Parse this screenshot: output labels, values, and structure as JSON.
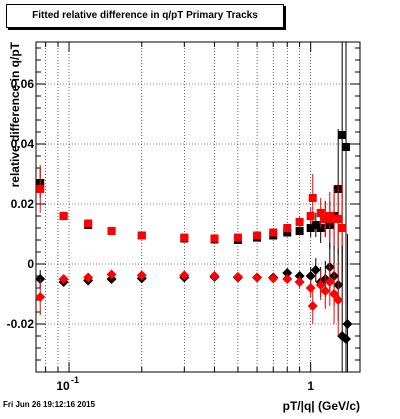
{
  "footer_timestamp": "Fri Jun 26 19:12:16 2015",
  "chart_data": {
    "type": "scatter",
    "title": "Fitted relative difference in q/pT  Primary Tracks",
    "xlabel": "pT/|q| (GeV/c)",
    "ylabel": "relative difference in q/pT",
    "xscale": "log",
    "xlim": [
      0.073,
      1.6
    ],
    "ylim": [
      -0.036,
      0.074
    ],
    "x_tick_labels": [
      {
        "value": 0.1,
        "label": "10",
        "exponent": "-1"
      },
      {
        "value": 1,
        "label": "1",
        "exponent": ""
      }
    ],
    "y_ticks": [
      {
        "value": -0.02,
        "label": "-0.02"
      },
      {
        "value": 0,
        "label": "0"
      },
      {
        "value": 0.02,
        "label": "0.02"
      },
      {
        "value": 0.04,
        "label": "0.04"
      },
      {
        "value": 0.06,
        "label": "0.06"
      }
    ],
    "grid": true,
    "colors": {
      "series_upper_black": "#000000",
      "series_upper_red": "#ff0000",
      "series_lower_black": "#000000",
      "series_lower_red": "#ff0000"
    },
    "series": [
      {
        "marker": "square",
        "color": "#000000",
        "points": [
          [
            0.076,
            0.027,
            0.005
          ],
          [
            0.095,
            0.016,
            0.001
          ],
          [
            0.12,
            0.013,
            0.0006
          ],
          [
            0.15,
            0.011,
            0.0005
          ],
          [
            0.2,
            0.0095,
            0.0004
          ],
          [
            0.3,
            0.0085,
            0.0004
          ],
          [
            0.4,
            0.0082,
            0.0004
          ],
          [
            0.5,
            0.008,
            0.0005
          ],
          [
            0.6,
            0.0088,
            0.0006
          ],
          [
            0.7,
            0.0095,
            0.0008
          ],
          [
            0.8,
            0.0105,
            0.001
          ],
          [
            0.9,
            0.011,
            0.0015
          ],
          [
            1.0,
            0.012,
            0.003
          ],
          [
            1.05,
            0.013,
            0.004
          ],
          [
            1.1,
            0.012,
            0.005
          ],
          [
            1.15,
            0.015,
            0.006
          ],
          [
            1.2,
            0.013,
            0.008
          ],
          [
            1.25,
            0.016,
            0.01
          ],
          [
            1.3,
            0.025,
            0.02
          ],
          [
            1.35,
            0.043,
            0.05
          ],
          [
            1.4,
            0.039,
            0.05
          ]
        ]
      },
      {
        "marker": "square",
        "color": "#ff0000",
        "points": [
          [
            0.076,
            0.025,
            0.008
          ],
          [
            0.095,
            0.016,
            0.0015
          ],
          [
            0.12,
            0.0135,
            0.0008
          ],
          [
            0.15,
            0.011,
            0.0006
          ],
          [
            0.2,
            0.0095,
            0.0005
          ],
          [
            0.3,
            0.0088,
            0.0005
          ],
          [
            0.4,
            0.0085,
            0.0005
          ],
          [
            0.5,
            0.0088,
            0.0006
          ],
          [
            0.6,
            0.0095,
            0.0007
          ],
          [
            0.7,
            0.0105,
            0.0009
          ],
          [
            0.8,
            0.012,
            0.0012
          ],
          [
            0.9,
            0.014,
            0.002
          ],
          [
            1.0,
            0.016,
            0.003
          ],
          [
            1.02,
            0.022,
            0.008
          ],
          [
            1.1,
            0.017,
            0.005
          ],
          [
            1.15,
            0.015,
            0.006
          ],
          [
            1.2,
            0.016,
            0.008
          ],
          [
            1.25,
            0.015,
            0.01
          ],
          [
            1.3,
            0.015,
            0.012
          ],
          [
            1.35,
            0.012,
            0.015
          ]
        ]
      },
      {
        "marker": "diamond",
        "color": "#000000",
        "points": [
          [
            0.076,
            -0.005,
            0.003
          ],
          [
            0.095,
            -0.006,
            0.0008
          ],
          [
            0.12,
            -0.0055,
            0.0005
          ],
          [
            0.15,
            -0.005,
            0.0004
          ],
          [
            0.2,
            -0.0048,
            0.0004
          ],
          [
            0.3,
            -0.0045,
            0.0004
          ],
          [
            0.4,
            -0.0043,
            0.0005
          ],
          [
            0.5,
            -0.0045,
            0.0006
          ],
          [
            0.6,
            -0.0045,
            0.0007
          ],
          [
            0.7,
            -0.0045,
            0.0009
          ],
          [
            0.8,
            -0.003,
            0.0012
          ],
          [
            0.9,
            -0.004,
            0.0015
          ],
          [
            1.0,
            -0.004,
            0.003
          ],
          [
            1.05,
            -0.002,
            0.004
          ],
          [
            1.1,
            -0.006,
            0.005
          ],
          [
            1.15,
            -0.005,
            0.006
          ],
          [
            1.2,
            -0.001,
            0.008
          ],
          [
            1.25,
            -0.004,
            0.01
          ],
          [
            1.3,
            -0.007,
            0.012
          ],
          [
            1.35,
            -0.024,
            0.03
          ],
          [
            1.4,
            -0.025,
            0.03
          ],
          [
            1.42,
            -0.02,
            0.03
          ]
        ]
      },
      {
        "marker": "diamond",
        "color": "#ff0000",
        "points": [
          [
            0.076,
            -0.011,
            0.006
          ],
          [
            0.095,
            -0.005,
            0.0012
          ],
          [
            0.12,
            -0.0045,
            0.0007
          ],
          [
            0.15,
            -0.0035,
            0.0005
          ],
          [
            0.2,
            -0.0038,
            0.0005
          ],
          [
            0.3,
            -0.0038,
            0.0005
          ],
          [
            0.4,
            -0.004,
            0.0005
          ],
          [
            0.5,
            -0.0043,
            0.0006
          ],
          [
            0.6,
            -0.0045,
            0.0007
          ],
          [
            0.7,
            -0.0048,
            0.0009
          ],
          [
            0.8,
            -0.005,
            0.0012
          ],
          [
            0.9,
            -0.006,
            0.002
          ],
          [
            1.0,
            -0.008,
            0.003
          ],
          [
            1.02,
            -0.014,
            0.006
          ],
          [
            1.1,
            -0.007,
            0.005
          ],
          [
            1.15,
            -0.009,
            0.006
          ],
          [
            1.2,
            -0.006,
            0.008
          ],
          [
            1.25,
            -0.01,
            0.01
          ],
          [
            1.3,
            -0.012,
            0.012
          ]
        ]
      }
    ]
  }
}
